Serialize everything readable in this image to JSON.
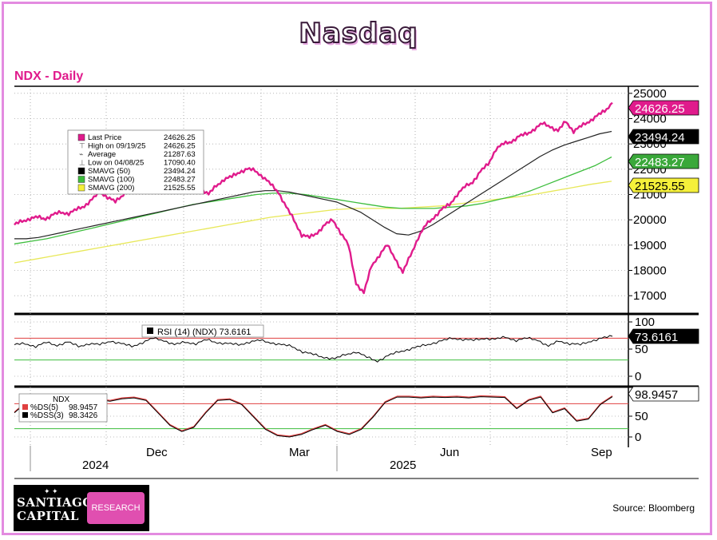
{
  "title": "Nasdaq",
  "ticker": "NDX - Daily",
  "source": "Source: Bloomberg",
  "logo": {
    "line1": "SANTIAGO",
    "line2": "CAPITAL",
    "button": "RESEARCH"
  },
  "colors": {
    "pink": "#e01b8c",
    "black": "#000000",
    "green": "#3dbd3d",
    "yellow": "#e8e85a",
    "red": "#e04040"
  },
  "chart_data": [
    {
      "type": "line",
      "name": "price-panel",
      "x_axis": {
        "ticks": [
          "Dec",
          "Mar",
          "Jun",
          "Sep"
        ],
        "years": [
          "2024",
          "2025"
        ]
      },
      "ylim": [
        16500,
        25500
      ],
      "yticks": [
        17000,
        18000,
        19000,
        20000,
        21000,
        22000,
        23000,
        24000,
        25000
      ],
      "legend": [
        {
          "label": "Last Price",
          "value": "24626.25"
        },
        {
          "label": "High on 09/19/25",
          "value": "24626.25"
        },
        {
          "label": "Average",
          "value": "21287.63"
        },
        {
          "label": "Low on 04/08/25",
          "value": "17090.40"
        },
        {
          "label": "SMAVG (50)",
          "value": "23494.24"
        },
        {
          "label": "SMAVG (100)",
          "value": "22483.27"
        },
        {
          "label": "SMAVG (200)",
          "value": "21525.55"
        }
      ],
      "value_tags": [
        "24626.25",
        "23494.24",
        "22483.27",
        "21525.55"
      ],
      "series": [
        {
          "name": "Last Price",
          "values": [
            19800,
            19950,
            20050,
            20100,
            20050,
            20200,
            20300,
            20250,
            20400,
            20550,
            20800,
            21100,
            20900,
            20700,
            21000,
            21300,
            21450,
            21550,
            21500,
            21100,
            21400,
            21650,
            21800,
            21500,
            21250,
            21000,
            21350,
            21600,
            21700,
            21900,
            22000,
            21950,
            21700,
            21400,
            21100,
            20500,
            20000,
            19400,
            19300,
            19500,
            19800,
            20000,
            19500,
            19000,
            17500,
            17100,
            18200,
            18600,
            19000,
            18500,
            17900,
            18600,
            19300,
            19800,
            20100,
            20400,
            20600,
            21000,
            21300,
            21500,
            21900,
            22200,
            22800,
            23000,
            23100,
            23300,
            23400,
            23600,
            23800,
            23700,
            23500,
            23900,
            23500,
            23700,
            23900,
            24100,
            24300,
            24626
          ]
        },
        {
          "name": "SMAVG (50)",
          "values": [
            19250,
            19250,
            19300,
            19400,
            19500,
            19600,
            19700,
            19800,
            19900,
            20000,
            20100,
            20200,
            20300,
            20400,
            20500,
            20600,
            20700,
            20800,
            20900,
            21000,
            21100,
            21150,
            21150,
            21100,
            21000,
            20900,
            20800,
            20700,
            20500,
            20300,
            20000,
            19700,
            19450,
            19400,
            19550,
            19800,
            20100,
            20400,
            20700,
            21000,
            21300,
            21600,
            21900,
            22200,
            22500,
            22750,
            22950,
            23100,
            23250,
            23400,
            23494
          ]
        },
        {
          "name": "SMAVG (100)",
          "values": [
            19050,
            19150,
            19250,
            19400,
            19550,
            19700,
            19850,
            20000,
            20150,
            20300,
            20450,
            20600,
            20700,
            20800,
            20900,
            21000,
            21050,
            21050,
            21000,
            20900,
            20800,
            20700,
            20600,
            20500,
            20450,
            20450,
            20450,
            20500,
            20550,
            20650,
            20800,
            20950,
            21150,
            21400,
            21650,
            21900,
            22150,
            22483
          ]
        },
        {
          "name": "SMAVG (200)",
          "values": [
            18300,
            18450,
            18600,
            18750,
            18900,
            19050,
            19200,
            19350,
            19500,
            19650,
            19800,
            19950,
            20100,
            20200,
            20300,
            20400,
            20450,
            20450,
            20450,
            20500,
            20550,
            20650,
            20750,
            20850,
            20950,
            21100,
            21250,
            21400,
            21525
          ]
        }
      ]
    },
    {
      "type": "line",
      "name": "rsi-panel",
      "label": "RSI (14) (NDX) 73.6161",
      "ylim": [
        0,
        100
      ],
      "yticks": [
        0,
        50,
        100
      ],
      "reference_lines": {
        "upper": 70,
        "lower": 30
      },
      "value_tag": "73.6161",
      "series": [
        {
          "name": "RSI (14) (NDX)",
          "values": [
            58,
            60,
            55,
            62,
            57,
            63,
            55,
            60,
            58,
            65,
            60,
            55,
            62,
            70,
            66,
            58,
            63,
            60,
            67,
            62,
            60,
            58,
            63,
            66,
            62,
            58,
            55,
            45,
            40,
            35,
            32,
            40,
            45,
            35,
            28,
            38,
            45,
            50,
            55,
            60,
            65,
            70,
            68,
            66,
            70,
            68,
            72,
            66,
            70,
            67,
            55,
            65,
            60,
            58,
            65,
            70,
            73.6
          ]
        }
      ]
    },
    {
      "type": "line",
      "name": "stochastic-panel",
      "label": "NDX",
      "legend": [
        {
          "label": "%DS(5)",
          "value": "98.9457"
        },
        {
          "label": "%DSS(3)",
          "value": "98.3426"
        }
      ],
      "ylim": [
        0,
        100
      ],
      "yticks": [
        0,
        50
      ],
      "reference_lines": {
        "upper": 80,
        "lower": 20
      },
      "value_tag": "98.9457",
      "series": [
        {
          "name": "%DS(5)",
          "values": [
            60,
            85,
            90,
            80,
            60,
            85,
            95,
            92,
            88,
            94,
            96,
            90,
            60,
            30,
            15,
            25,
            60,
            90,
            92,
            80,
            50,
            20,
            5,
            2,
            8,
            20,
            30,
            15,
            8,
            20,
            50,
            85,
            98,
            98,
            96,
            98,
            97,
            98,
            96,
            99,
            98,
            97,
            70,
            90,
            98,
            60,
            70,
            40,
            45,
            80,
            98.9
          ]
        }
      ]
    }
  ]
}
